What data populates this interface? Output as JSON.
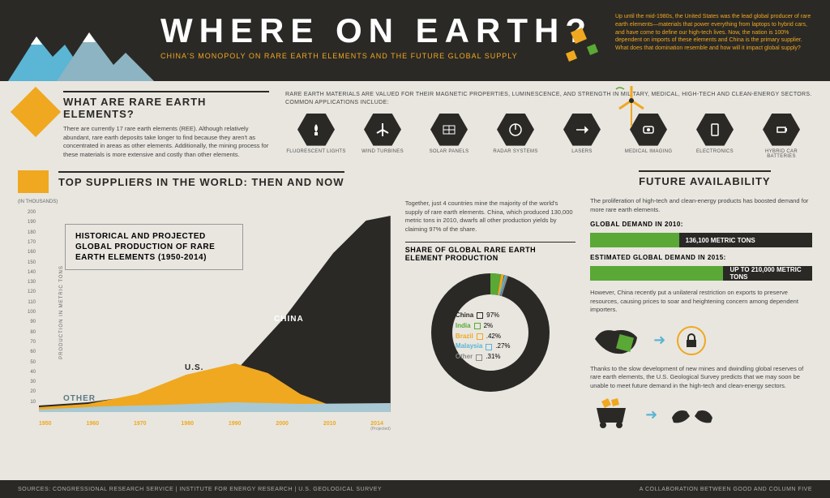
{
  "header": {
    "title": "WHERE ON EARTH?",
    "subtitle": "CHINA'S MONOPOLY ON RARE EARTH ELEMENTS AND THE FUTURE GLOBAL SUPPLY",
    "intro": "Up until the mid-1980s, the United States was the lead global producer of rare earth elements—materials that power everything from laptops to hybrid cars, and have come to define our high-tech lives. Now, the nation is 100% dependent on imports of these elements and China is the primary supplier. What does that domination resemble and how will it impact global supply?"
  },
  "sec1": {
    "title": "WHAT ARE RARE EARTH ELEMENTS?",
    "body": "There are currently 17 rare earth elements (REE). Although relatively abundant, rare earth deposits take longer to find because they aren't as concentrated in areas as other elements. Additionally, the mining process for these materials is more extensive and costly than other elements.",
    "apps_intro": "RARE EARTH MATERIALS ARE VALUED FOR THEIR MAGNETIC PROPERTIES, LUMINESCENCE, AND STRENGTH IN MILITARY, MEDICAL, HIGH-TECH AND CLEAN-ENERGY SECTORS. COMMON APPLICATIONS INCLUDE:",
    "apps": [
      "FLUORESCENT LIGHTS",
      "WIND TURBINES",
      "SOLAR PANELS",
      "RADAR SYSTEMS",
      "LASERS",
      "MEDICAL IMAGING",
      "ELECTRONICS",
      "HYBRID CAR BATTERIES"
    ]
  },
  "suppliers": {
    "title": "TOP SUPPLIERS IN THE WORLD: THEN AND NOW",
    "chart": {
      "title": "HISTORICAL AND PROJECTED GLOBAL PRODUCTION OF RARE EARTH ELEMENTS (1950-2014)",
      "yunit": "(IN THOUSANDS)",
      "yaxis_label": "PRODUCTION IN METRIC TONS",
      "ylim": [
        0,
        200
      ],
      "ytick": 10,
      "xticks": [
        "1950",
        "1960",
        "1970",
        "1980",
        "1990",
        "2000",
        "2010",
        "2014"
      ],
      "xnote": "(Projected)",
      "series": [
        {
          "name": "OTHER",
          "color": "#a8c8d4"
        },
        {
          "name": "U.S.",
          "color": "#f0a820"
        },
        {
          "name": "CHINA",
          "color": "#2a2926"
        }
      ]
    },
    "donut": {
      "intro": "Together, just 4 countries mine the majority of the world's supply of rare earth elements. China, which produced 130,000 metric tons in 2010, dwarfs all other production yields by claiming 97% of the share.",
      "title": "SHARE OF GLOBAL RARE EARTH ELEMENT PRODUCTION",
      "slices": [
        {
          "label": "China",
          "value": "97%",
          "color": "#2a2926"
        },
        {
          "label": "India",
          "value": "2%",
          "color": "#5aa836"
        },
        {
          "label": "Brazil",
          "value": ".42%",
          "color": "#f0a820"
        },
        {
          "label": "Malaysia",
          "value": ".27%",
          "color": "#5bb5d4"
        },
        {
          "label": "Other",
          "value": ".31%",
          "color": "#888888"
        }
      ]
    }
  },
  "future": {
    "title": "FUTURE AVAILABILITY",
    "intro": "The proliferation of high-tech and clean-energy products has boosted demand for more rare earth elements.",
    "demand": [
      {
        "label": "GLOBAL DEMAND IN 2010:",
        "value": "136,100 METRIC TONS",
        "pct": 40
      },
      {
        "label": "ESTIMATED GLOBAL DEMAND IN 2015:",
        "value": "UP TO 210,000 METRIC TONS",
        "pct": 60
      }
    ],
    "p1": "However, China recently put a unilateral restriction on exports to preserve resources, causing prices to soar and heightening concern among dependent importers.",
    "p2": "Thanks to the slow development of new mines and dwindling global reserves of rare earth elements, the U.S. Geological Survey predicts that we may soon be unable to meet future demand in the high-tech and clean-energy sectors."
  },
  "footer": {
    "left": "SOURCES: CONGRESSIONAL RESEARCH SERVICE | INSTITUTE FOR ENERGY RESEARCH | U.S. GEOLOGICAL SURVEY",
    "right": "A COLLABORATION BETWEEN GOOD AND COLUMN FIVE"
  },
  "colors": {
    "bg": "#e8e6df",
    "dark": "#2a2926",
    "orange": "#f0a820",
    "green": "#5aa836",
    "blue": "#5bb5d4"
  }
}
